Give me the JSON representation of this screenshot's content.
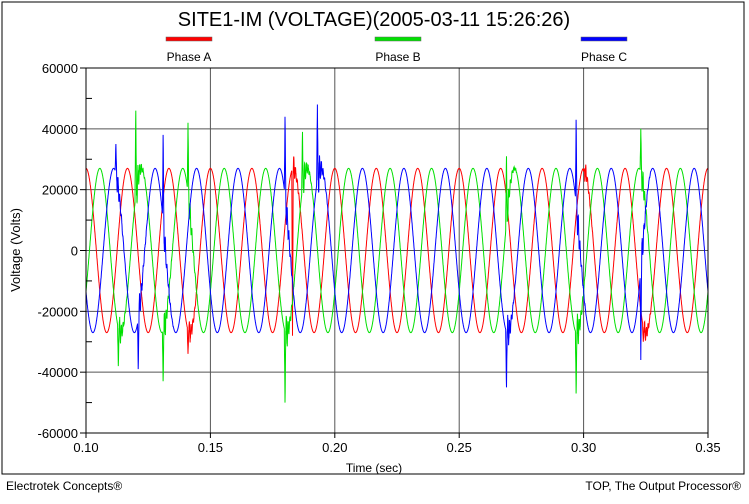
{
  "chart_data": {
    "type": "line",
    "title": "SITE1-IM (VOLTAGE)(2005-03-11 15:26:26)",
    "xlabel": "Time (sec)",
    "ylabel": "Voltage (Volts)",
    "xlim": [
      0.1,
      0.35
    ],
    "ylim": [
      -60000,
      60000
    ],
    "xticks": [
      "0.10",
      "0.15",
      "0.20",
      "0.25",
      "0.30",
      "0.35"
    ],
    "yticks": [
      "60000",
      "40000",
      "20000",
      "0",
      "-20000",
      "-40000",
      "-60000"
    ],
    "grid": true,
    "legend_position": "top",
    "series": [
      {
        "name": "Phase A",
        "color": "#ff0000",
        "amplitude": 27000,
        "frequency_hz": 60,
        "phase_deg": 0,
        "transients": [
          [
            0.141,
            -34000
          ],
          [
            0.183,
            -28000
          ],
          [
            0.3,
            26000
          ],
          [
            0.324,
            -30000
          ]
        ]
      },
      {
        "name": "Phase B",
        "color": "#00e000",
        "amplitude": 27000,
        "frequency_hz": 60,
        "phase_deg": -120,
        "transients": [
          [
            0.113,
            -38000
          ],
          [
            0.12,
            46000
          ],
          [
            0.131,
            -43000
          ],
          [
            0.141,
            42000
          ],
          [
            0.18,
            -50000
          ],
          [
            0.187,
            39000
          ],
          [
            0.269,
            31000
          ],
          [
            0.297,
            -47000
          ],
          [
            0.323,
            40000
          ]
        ]
      },
      {
        "name": "Phase C",
        "color": "#0000ff",
        "amplitude": 27000,
        "frequency_hz": 60,
        "phase_deg": 120,
        "transients": [
          [
            0.112,
            35000
          ],
          [
            0.121,
            -39000
          ],
          [
            0.131,
            38000
          ],
          [
            0.18,
            44000
          ],
          [
            0.193,
            48000
          ],
          [
            0.269,
            -45000
          ],
          [
            0.297,
            43000
          ],
          [
            0.323,
            -36000
          ]
        ]
      }
    ]
  },
  "footer": {
    "left": "Electrotek Concepts®",
    "right": "TOP, The Output Processor®"
  }
}
